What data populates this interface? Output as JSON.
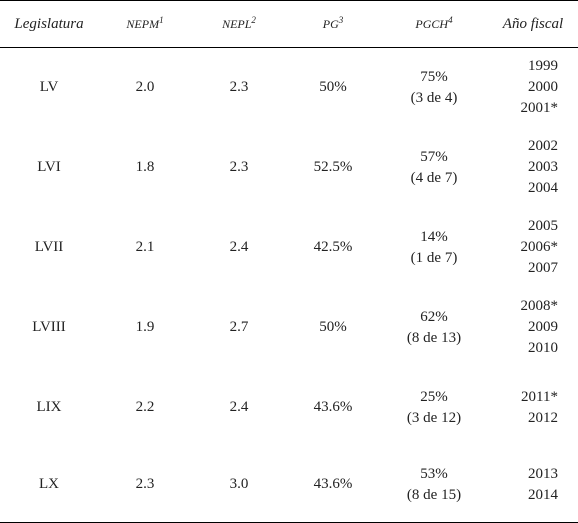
{
  "header": {
    "legislatura": "Legislatura",
    "nepm": "NEPM",
    "nepm_sup": "1",
    "nepl": "NEPL",
    "nepl_sup": "2",
    "pg": "PG",
    "pg_sup": "3",
    "pgch": "PGCH",
    "pgch_sup": "4",
    "anio": "Año fiscal"
  },
  "rows": [
    {
      "leg": "LV",
      "nepm": "2.0",
      "nepl": "2.3",
      "pg": "50%",
      "pgch": "75%",
      "pgch_frac": "(3 de 4)",
      "years": [
        "1999",
        "2000",
        "2001*"
      ]
    },
    {
      "leg": "LVI",
      "nepm": "1.8",
      "nepl": "2.3",
      "pg": "52.5%",
      "pgch": "57%",
      "pgch_frac": "(4 de 7)",
      "years": [
        "2002",
        "2003",
        "2004"
      ]
    },
    {
      "leg": "LVII",
      "nepm": "2.1",
      "nepl": "2.4",
      "pg": "42.5%",
      "pgch": "14%",
      "pgch_frac": "(1 de 7)",
      "years": [
        "2005",
        "2006*",
        "2007"
      ]
    },
    {
      "leg": "LVIII",
      "nepm": "1.9",
      "nepl": "2.7",
      "pg": "50%",
      "pgch": "62%",
      "pgch_frac": "(8 de 13)",
      "years": [
        "2008*",
        "2009",
        "2010"
      ]
    },
    {
      "leg": "LIX",
      "nepm": "2.2",
      "nepl": "2.4",
      "pg": "43.6%",
      "pgch": "25%",
      "pgch_frac": "(3 de 12)",
      "years": [
        "2011*",
        "2012"
      ]
    },
    {
      "leg": "LX",
      "nepm": "2.3",
      "nepl": "3.0",
      "pg": "43.6%",
      "pgch": "53%",
      "pgch_frac": "(8 de 15)",
      "years": [
        "2013",
        "2014"
      ]
    }
  ]
}
